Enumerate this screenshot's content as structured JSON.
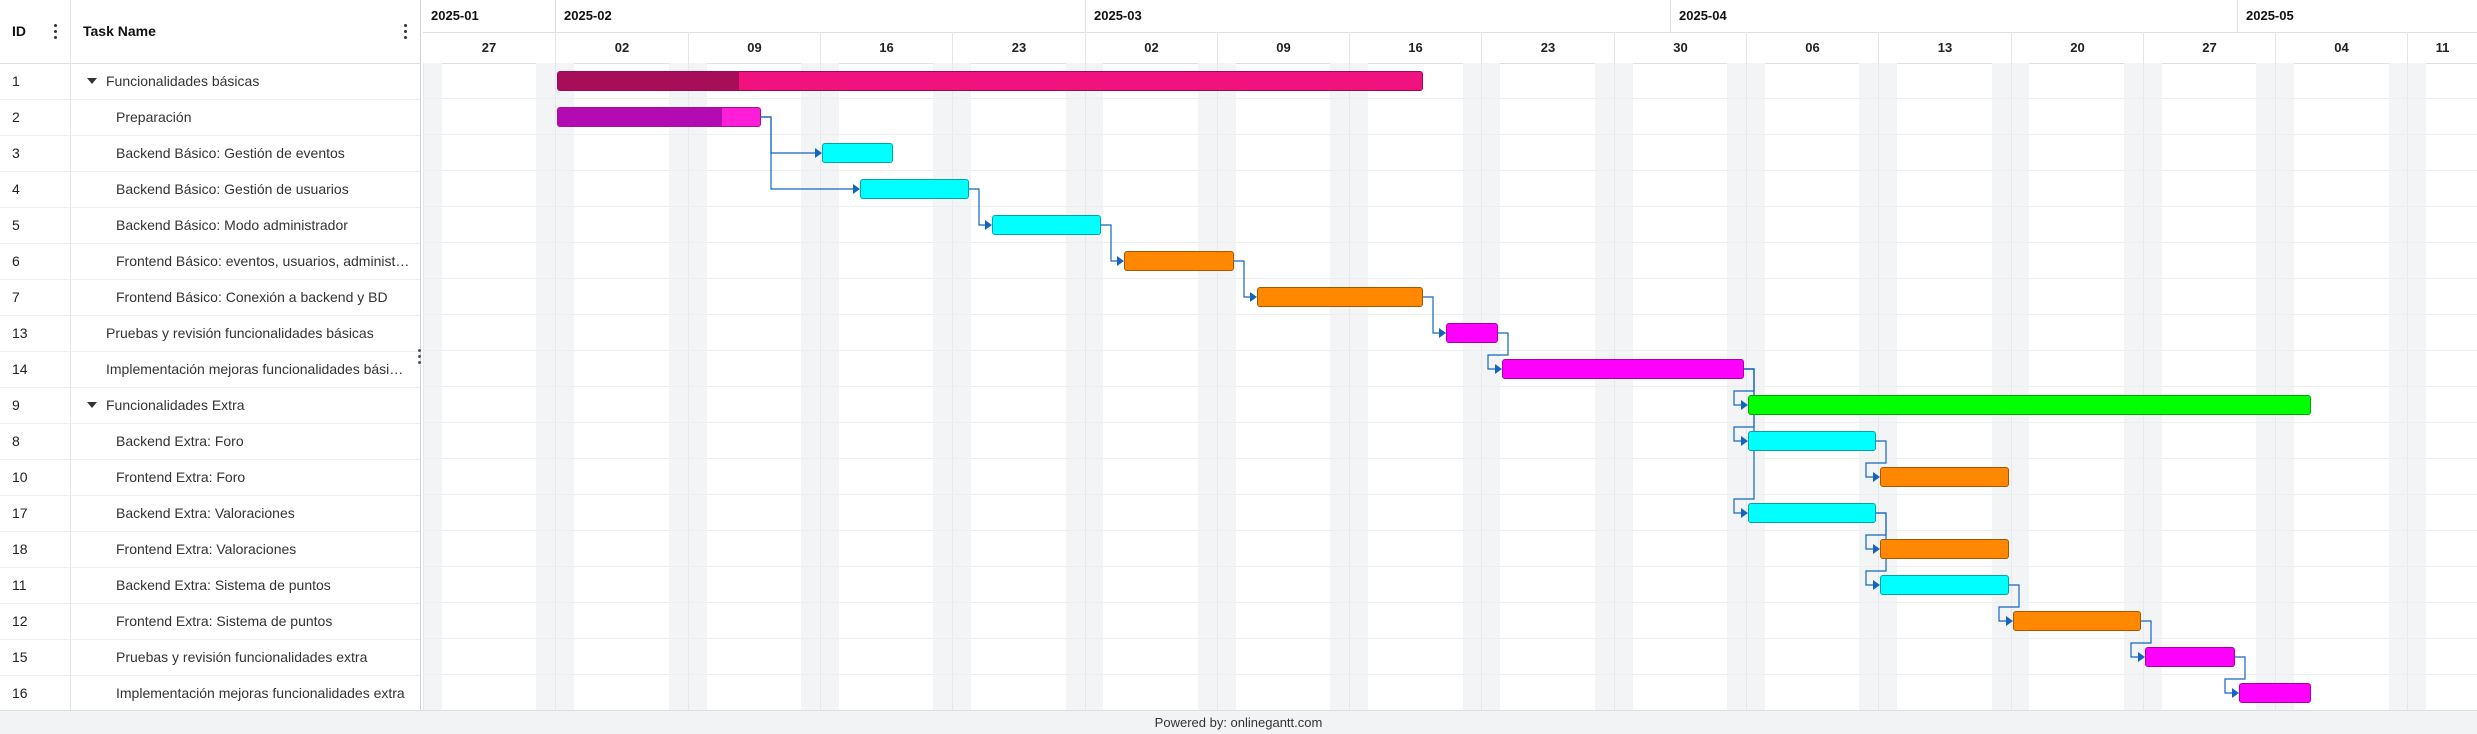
{
  "grid": {
    "id_header": "ID",
    "name_header": "Task Name",
    "tasks": [
      {
        "id": "1",
        "name": "Funcionalidades básicas",
        "level": 0,
        "group": true
      },
      {
        "id": "2",
        "name": "Preparación",
        "level": 1,
        "group": false
      },
      {
        "id": "3",
        "name": "Backend Básico: Gestión de eventos",
        "level": 1,
        "group": false
      },
      {
        "id": "4",
        "name": "Backend Básico: Gestión de usuarios",
        "level": 1,
        "group": false
      },
      {
        "id": "5",
        "name": "Backend Básico: Modo administrador",
        "level": 1,
        "group": false
      },
      {
        "id": "6",
        "name": "Frontend Básico: eventos, usuarios, administrador",
        "level": 1,
        "group": false
      },
      {
        "id": "7",
        "name": "Frontend Básico: Conexión a backend y BD",
        "level": 1,
        "group": false
      },
      {
        "id": "13",
        "name": "Pruebas y revisión funcionalidades básicas",
        "level": 0,
        "group": false
      },
      {
        "id": "14",
        "name": "Implementación mejoras funcionalidades básicas",
        "level": 0,
        "group": false
      },
      {
        "id": "9",
        "name": "Funcionalidades Extra",
        "level": 0,
        "group": true
      },
      {
        "id": "8",
        "name": "Backend Extra: Foro",
        "level": 1,
        "group": false
      },
      {
        "id": "10",
        "name": "Frontend Extra: Foro",
        "level": 1,
        "group": false
      },
      {
        "id": "17",
        "name": "Backend Extra: Valoraciones",
        "level": 1,
        "group": false
      },
      {
        "id": "18",
        "name": "Frontend Extra: Valoraciones",
        "level": 1,
        "group": false
      },
      {
        "id": "11",
        "name": "Backend Extra: Sistema de puntos",
        "level": 1,
        "group": false
      },
      {
        "id": "12",
        "name": "Frontend Extra: Sistema de puntos",
        "level": 1,
        "group": false
      },
      {
        "id": "15",
        "name": "Pruebas y revisión funcionalidades extra",
        "level": 1,
        "group": false
      },
      {
        "id": "16",
        "name": "Implementación mejoras funcionalidades extra",
        "level": 1,
        "group": false
      }
    ]
  },
  "timeline": {
    "months": [
      "2025-01",
      "2025-02",
      "2025-03",
      "2025-04",
      "2025-05"
    ],
    "month_start_days": [
      0,
      7,
      35,
      66,
      96
    ],
    "weeks": [
      "27",
      "02",
      "09",
      "16",
      "23",
      "02",
      "09",
      "16",
      "23",
      "30",
      "06",
      "13",
      "20",
      "27",
      "04",
      "11"
    ],
    "first_day": "2025-01-26"
  },
  "bars": [
    {
      "row": 0,
      "start": "2025-02-02",
      "end": "2025-03-19",
      "color": "#f0127f",
      "progress": 0.21,
      "progress_color": "#a80d5a"
    },
    {
      "row": 1,
      "start": "2025-02-02",
      "end": "2025-02-12",
      "color": "#ff1ed8",
      "progress": 0.81,
      "progress_color": "#b40ab2"
    },
    {
      "row": 2,
      "start": "2025-02-16",
      "end": "2025-02-19",
      "color": "#00ffff",
      "progress": 0,
      "progress_color": ""
    },
    {
      "row": 3,
      "start": "2025-02-18",
      "end": "2025-02-23",
      "color": "#00ffff",
      "progress": 0,
      "progress_color": ""
    },
    {
      "row": 4,
      "start": "2025-02-25",
      "end": "2025-03-02",
      "color": "#00ffff",
      "progress": 0,
      "progress_color": ""
    },
    {
      "row": 5,
      "start": "2025-03-04",
      "end": "2025-03-09",
      "color": "#ff8800",
      "progress": 0,
      "progress_color": ""
    },
    {
      "row": 6,
      "start": "2025-03-11",
      "end": "2025-03-19",
      "color": "#ff8800",
      "progress": 0,
      "progress_color": ""
    },
    {
      "row": 7,
      "start": "2025-03-21",
      "end": "2025-03-23",
      "color": "#ff00ff",
      "progress": 0,
      "progress_color": ""
    },
    {
      "row": 8,
      "start": "2025-03-24",
      "end": "2025-04-05",
      "color": "#ff00ff",
      "progress": 0,
      "progress_color": ""
    },
    {
      "row": 9,
      "start": "2025-04-06",
      "end": "2025-05-05",
      "color": "#00ff00",
      "progress": 0,
      "progress_color": ""
    },
    {
      "row": 10,
      "start": "2025-04-06",
      "end": "2025-04-12",
      "color": "#00ffff",
      "progress": 0,
      "progress_color": ""
    },
    {
      "row": 11,
      "start": "2025-04-13",
      "end": "2025-04-19",
      "color": "#ff8800",
      "progress": 0,
      "progress_color": ""
    },
    {
      "row": 12,
      "start": "2025-04-06",
      "end": "2025-04-12",
      "color": "#00ffff",
      "progress": 0,
      "progress_color": ""
    },
    {
      "row": 13,
      "start": "2025-04-13",
      "end": "2025-04-19",
      "color": "#ff8800",
      "progress": 0,
      "progress_color": ""
    },
    {
      "row": 14,
      "start": "2025-04-13",
      "end": "2025-04-19",
      "color": "#00ffff",
      "progress": 0,
      "progress_color": ""
    },
    {
      "row": 15,
      "start": "2025-04-20",
      "end": "2025-04-26",
      "color": "#ff8800",
      "progress": 0,
      "progress_color": ""
    },
    {
      "row": 16,
      "start": "2025-04-27",
      "end": "2025-05-01",
      "color": "#ff00ff",
      "progress": 0,
      "progress_color": ""
    },
    {
      "row": 17,
      "start": "2025-05-02",
      "end": "2025-05-05",
      "color": "#ff00ff",
      "progress": 0,
      "progress_color": ""
    }
  ],
  "links": [
    [
      1,
      2
    ],
    [
      1,
      3
    ],
    [
      3,
      4
    ],
    [
      4,
      5
    ],
    [
      5,
      6
    ],
    [
      6,
      7
    ],
    [
      7,
      8
    ],
    [
      8,
      10
    ],
    [
      8,
      12
    ],
    [
      8,
      9
    ],
    [
      10,
      11
    ],
    [
      12,
      13
    ],
    [
      12,
      14
    ],
    [
      14,
      15
    ],
    [
      15,
      16
    ],
    [
      16,
      17
    ]
  ],
  "colors": {
    "link": "#1565c0",
    "weekend": "#f3f4f6"
  },
  "footer": {
    "text": "Powered by: onlinegantt.com"
  }
}
